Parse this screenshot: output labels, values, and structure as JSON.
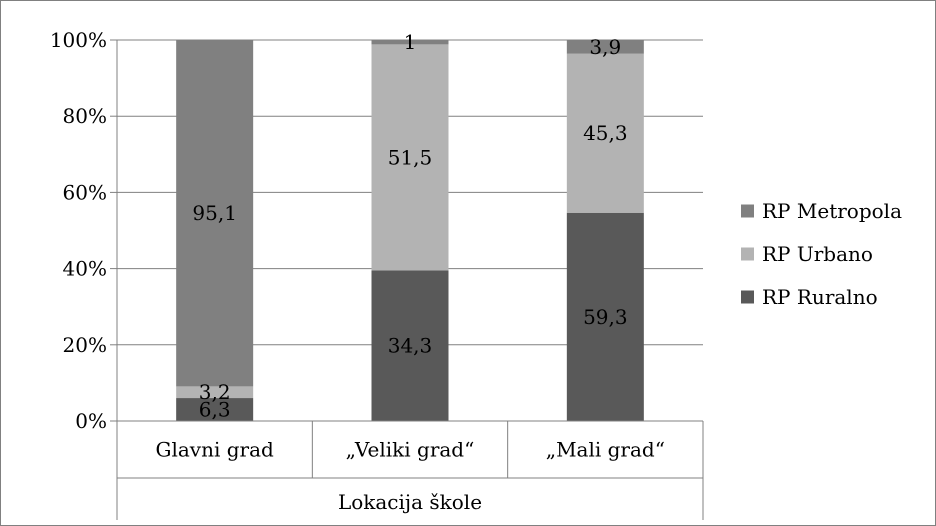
{
  "chart_data": {
    "type": "bar",
    "stacked": true,
    "percent_stacked": true,
    "categories": [
      "Glavni grad",
      "„Veliki grad“",
      "„Mali grad“"
    ],
    "series": [
      {
        "name": "RP Ruralno",
        "values": [
          6.3,
          34.3,
          59.3
        ],
        "color": "#595959"
      },
      {
        "name": "RP Urbano",
        "values": [
          3.2,
          51.5,
          45.3
        ],
        "color": "#b3b3b3"
      },
      {
        "name": "RP Metropola",
        "values": [
          95.1,
          1,
          3.9
        ],
        "color": "#808080"
      }
    ],
    "data_labels": [
      [
        "6,3",
        "34,3",
        "59,3"
      ],
      [
        "3,2",
        "51,5",
        "45,3"
      ],
      [
        "95,1",
        "1",
        "3,9"
      ]
    ],
    "y_ticks": [
      "0%",
      "20%",
      "40%",
      "60%",
      "80%",
      "100%"
    ],
    "ylim": [
      0,
      100
    ],
    "xlabel": "Lokacija škole",
    "ylabel": "",
    "title": "",
    "grid": true,
    "legend_position": "right"
  }
}
